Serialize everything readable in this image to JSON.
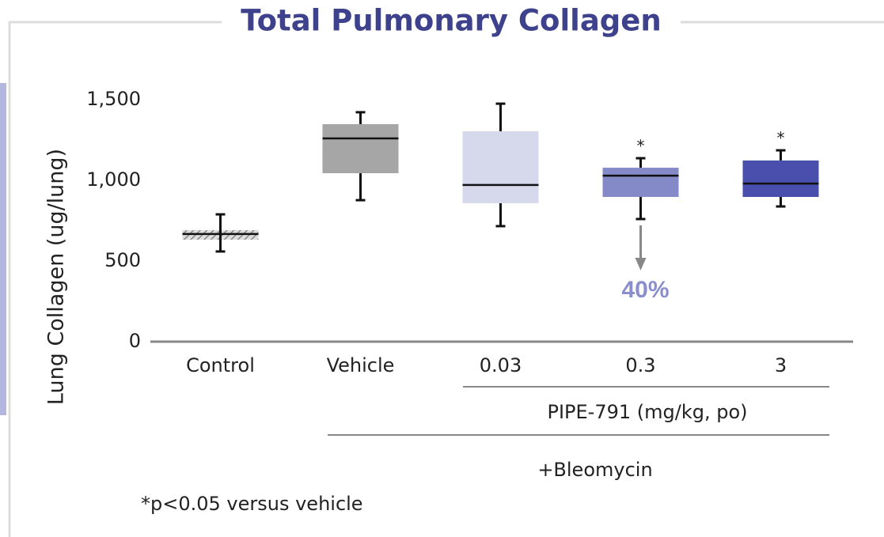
{
  "chart_data": {
    "type": "box",
    "title": "Total Pulmonary Collagen",
    "ylabel": "Lung Collagen (ug/lung)",
    "categories": [
      "Control",
      "Vehicle",
      "0.03",
      "0.3",
      "3"
    ],
    "boxes": [
      {
        "whislo": 559,
        "q1": 632,
        "med": 667,
        "q3": 691,
        "whishi": 789,
        "color": "#bdbdbd",
        "hatch": true
      },
      {
        "whislo": 877,
        "q1": 1044,
        "med": 1260,
        "q3": 1348,
        "whishi": 1422,
        "color": "#a6a6a6"
      },
      {
        "whislo": 716,
        "q1": 858,
        "med": 971,
        "q3": 1304,
        "whishi": 1475,
        "color": "#d6d8ec"
      },
      {
        "whislo": 760,
        "q1": 897,
        "med": 1029,
        "q3": 1078,
        "whishi": 1137,
        "color": "#8489c8"
      },
      {
        "whislo": 838,
        "q1": 897,
        "med": 980,
        "q3": 1123,
        "whishi": 1186,
        "color": "#4a4fae"
      }
    ],
    "markers": [
      null,
      null,
      null,
      "*",
      "*"
    ],
    "annotation": "40%",
    "group_labels": [
      "PIPE-791 (mg/kg, po)",
      "+Bleomycin"
    ],
    "footnote": "*p<0.05 versus vehicle",
    "ylim": [
      0,
      1500
    ],
    "yticks": [
      0,
      500,
      {
        "value": 1000,
        "label": "1,000"
      },
      {
        "value": 1500,
        "label": "1,500"
      }
    ]
  }
}
